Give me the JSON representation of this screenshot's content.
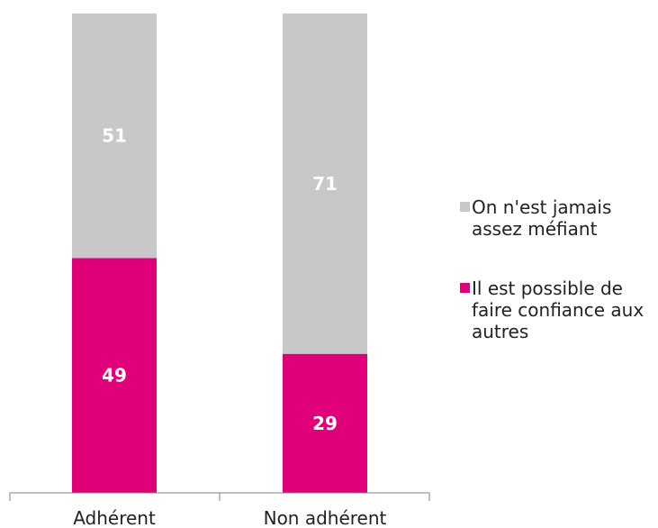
{
  "chart_data": {
    "type": "bar",
    "stacked": true,
    "categories": [
      "Adhérent",
      "Non adhérent"
    ],
    "series": [
      {
        "name": "Il est possible de faire confiance aux autres",
        "values": [
          49,
          29
        ],
        "color": "#e0007a"
      },
      {
        "name": "On n'est jamais assez méfiant",
        "values": [
          51,
          71
        ],
        "color": "#c8c8c8"
      }
    ],
    "ylim": [
      0,
      100
    ],
    "grid": false,
    "legend": "right",
    "data_label_color": "#ffffff"
  }
}
